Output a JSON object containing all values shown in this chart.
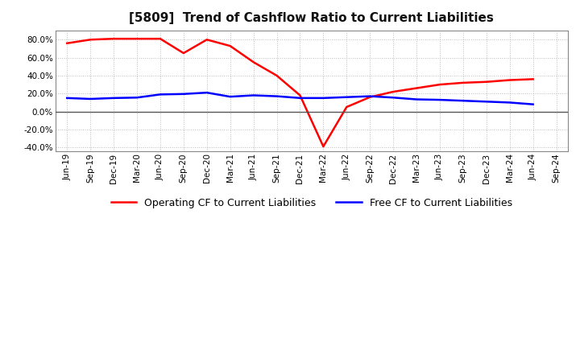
{
  "title": "[5809]  Trend of Cashflow Ratio to Current Liabilities",
  "x_labels": [
    "Jun-19",
    "Sep-19",
    "Dec-19",
    "Mar-20",
    "Jun-20",
    "Sep-20",
    "Dec-20",
    "Mar-21",
    "Jun-21",
    "Sep-21",
    "Dec-21",
    "Mar-22",
    "Jun-22",
    "Sep-22",
    "Dec-22",
    "Mar-23",
    "Jun-23",
    "Sep-23",
    "Dec-23",
    "Mar-24",
    "Jun-24",
    "Sep-24"
  ],
  "operating_cf": [
    0.76,
    0.8,
    0.81,
    0.81,
    0.81,
    0.65,
    0.8,
    0.73,
    0.55,
    0.4,
    0.18,
    -0.39,
    0.05,
    0.16,
    0.22,
    0.26,
    0.3,
    0.32,
    0.33,
    0.35,
    0.36,
    null
  ],
  "free_cf": [
    0.15,
    0.14,
    0.15,
    0.155,
    0.19,
    0.195,
    0.21,
    0.165,
    0.18,
    0.17,
    0.15,
    0.15,
    0.16,
    0.17,
    0.155,
    0.135,
    0.13,
    0.12,
    0.11,
    0.1,
    0.08,
    null
  ],
  "ylim": [
    -0.44,
    0.9
  ],
  "yticks": [
    -0.4,
    -0.2,
    0.0,
    0.2,
    0.4,
    0.6,
    0.8
  ],
  "operating_color": "#FF0000",
  "free_color": "#0000FF",
  "background_color": "#FFFFFF",
  "grid_color": "#BBBBBB",
  "legend_operating": "Operating CF to Current Liabilities",
  "legend_free": "Free CF to Current Liabilities",
  "title_fontsize": 11,
  "tick_fontsize": 7.5,
  "legend_fontsize": 9
}
